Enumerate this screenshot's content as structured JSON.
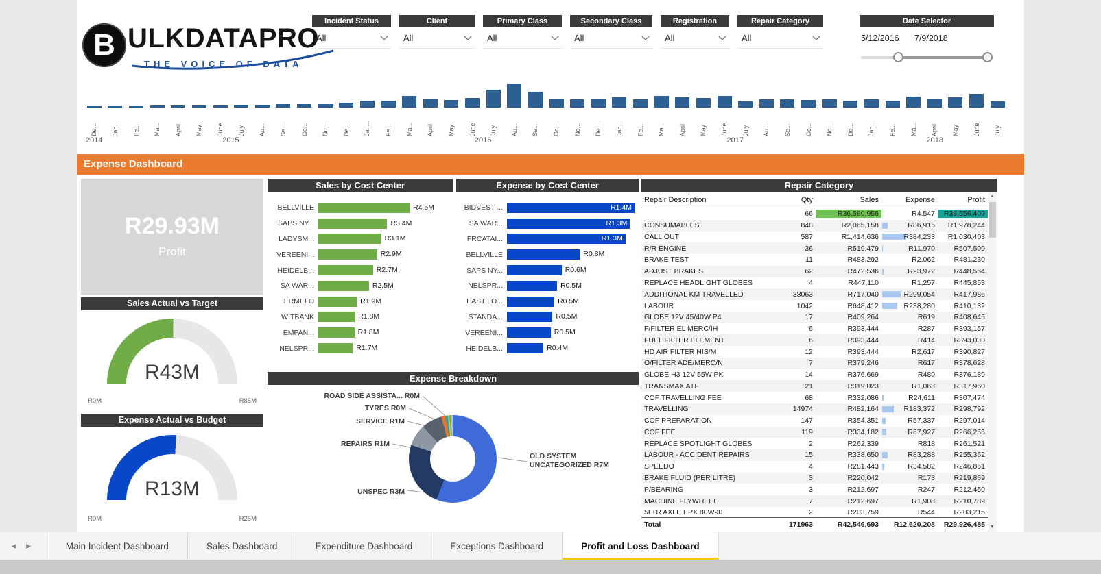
{
  "colors": {
    "header_dark": "#3b3b3b",
    "banner_orange": "#ec7b2e",
    "sales_green": "#70ad47",
    "expense_blue": "#0847c8",
    "timeline_blue": "#2e5f93",
    "sales_highlight": "#70c254",
    "profit_highlight": "#16a398",
    "expense_databar": "#a9c7ef",
    "tab_underline": "#f2c811",
    "logo_blue": "#1d4f9e"
  },
  "logo": {
    "mark": "B",
    "title": "ULKDATAPRO",
    "tagline": "THE VOICE OF DATA"
  },
  "filters": [
    {
      "label": "Incident Status",
      "value": "All"
    },
    {
      "label": "Client",
      "value": "All"
    },
    {
      "label": "Primary Class",
      "value": "All"
    },
    {
      "label": "Secondary Class",
      "value": "All"
    },
    {
      "label": "Registration",
      "value": "All"
    },
    {
      "label": "Repair Category",
      "value": "All"
    }
  ],
  "date_selector": {
    "label": "Date Selector",
    "start_date": "5/12/2016",
    "end_date": "7/9/2018"
  },
  "timeline": {
    "type": "bar",
    "value_scale": "relative-height",
    "months": [
      {
        "label": "De...",
        "value": 2
      },
      {
        "label": "Jan...",
        "value": 2
      },
      {
        "label": "Fe...",
        "value": 2
      },
      {
        "label": "Ma...",
        "value": 3
      },
      {
        "label": "April",
        "value": 3
      },
      {
        "label": "May",
        "value": 3
      },
      {
        "label": "June",
        "value": 3
      },
      {
        "label": "July",
        "value": 4
      },
      {
        "label": "Au...",
        "value": 4
      },
      {
        "label": "Se...",
        "value": 5
      },
      {
        "label": "Oc...",
        "value": 5
      },
      {
        "label": "No...",
        "value": 5
      },
      {
        "label": "De...",
        "value": 7
      },
      {
        "label": "Jan...",
        "value": 10
      },
      {
        "label": "Fe...",
        "value": 10
      },
      {
        "label": "Ma...",
        "value": 17
      },
      {
        "label": "April",
        "value": 13
      },
      {
        "label": "May",
        "value": 11
      },
      {
        "label": "June",
        "value": 14
      },
      {
        "label": "July",
        "value": 26
      },
      {
        "label": "Au...",
        "value": 35
      },
      {
        "label": "Se...",
        "value": 23
      },
      {
        "label": "Oc...",
        "value": 13
      },
      {
        "label": "No...",
        "value": 12
      },
      {
        "label": "De...",
        "value": 13
      },
      {
        "label": "Jan...",
        "value": 15
      },
      {
        "label": "Fe...",
        "value": 12
      },
      {
        "label": "Ma...",
        "value": 17
      },
      {
        "label": "April",
        "value": 15
      },
      {
        "label": "May",
        "value": 14
      },
      {
        "label": "June",
        "value": 17
      },
      {
        "label": "July",
        "value": 9
      },
      {
        "label": "Au...",
        "value": 12
      },
      {
        "label": "Se...",
        "value": 12
      },
      {
        "label": "Oc...",
        "value": 11
      },
      {
        "label": "No...",
        "value": 12
      },
      {
        "label": "De...",
        "value": 10
      },
      {
        "label": "Jan...",
        "value": 12
      },
      {
        "label": "Fe...",
        "value": 10
      },
      {
        "label": "Ma...",
        "value": 16
      },
      {
        "label": "April",
        "value": 13
      },
      {
        "label": "May",
        "value": 15
      },
      {
        "label": "June",
        "value": 20
      },
      {
        "label": "July",
        "value": 9
      }
    ],
    "years": [
      {
        "label": "2014",
        "span": 1
      },
      {
        "label": "2015",
        "span": 12
      },
      {
        "label": "2016",
        "span": 12
      },
      {
        "label": "2017",
        "span": 12
      },
      {
        "label": "2018",
        "span": 7
      }
    ]
  },
  "banner": {
    "title": "Expense Dashboard"
  },
  "profit_card": {
    "value": "R29.93M",
    "label": "Profit"
  },
  "sales_gauge": {
    "type": "gauge",
    "title": "Sales Actual vs Target",
    "value": "R43M",
    "min": "R0M",
    "max": "R85M",
    "fraction": 0.506,
    "color": "#70ad47"
  },
  "expense_gauge": {
    "type": "gauge",
    "title": "Expense Actual vs Budget",
    "value": "R13M",
    "min": "R0M",
    "max": "R25M",
    "fraction": 0.52,
    "color": "#0847c8"
  },
  "sales_by_cost_center": {
    "type": "hbar",
    "title": "Sales by Cost Center",
    "max": 4.5,
    "color": "#70ad47",
    "bars": [
      {
        "label": "BELLVILLE",
        "value": "R4.5M",
        "num": 4.5
      },
      {
        "label": "SAPS NY...",
        "value": "R3.4M",
        "num": 3.4
      },
      {
        "label": "LADYSM...",
        "value": "R3.1M",
        "num": 3.1
      },
      {
        "label": "VEREENI...",
        "value": "R2.9M",
        "num": 2.9
      },
      {
        "label": "HEIDELB...",
        "value": "R2.7M",
        "num": 2.7
      },
      {
        "label": "SA WAR...",
        "value": "R2.5M",
        "num": 2.5
      },
      {
        "label": "ERMELO",
        "value": "R1.9M",
        "num": 1.9
      },
      {
        "label": "WITBANK",
        "value": "R1.8M",
        "num": 1.8
      },
      {
        "label": "EMPAN...",
        "value": "R1.8M",
        "num": 1.78
      },
      {
        "label": "NELSPR...",
        "value": "R1.7M",
        "num": 1.7
      }
    ]
  },
  "expense_by_cost_center": {
    "type": "hbar",
    "title": "Expense by Cost Center",
    "max": 1.4,
    "color": "#0847c8",
    "bars": [
      {
        "label": "BIDVEST ...",
        "value": "R1.4M",
        "num": 1.4,
        "inside": true
      },
      {
        "label": "SA WAR...",
        "value": "R1.3M",
        "num": 1.35,
        "inside": true
      },
      {
        "label": "FRCATAI...",
        "value": "R1.3M",
        "num": 1.3,
        "inside": true
      },
      {
        "label": "BELLVILLE",
        "value": "R0.8M",
        "num": 0.8
      },
      {
        "label": "SAPS NY...",
        "value": "R0.6M",
        "num": 0.6
      },
      {
        "label": "NELSPR...",
        "value": "R0.5M",
        "num": 0.55
      },
      {
        "label": "EAST LO...",
        "value": "R0.5M",
        "num": 0.52
      },
      {
        "label": "STANDA...",
        "value": "R0.5M",
        "num": 0.5
      },
      {
        "label": "VEREENI...",
        "value": "R0.5M",
        "num": 0.48
      },
      {
        "label": "HEIDELB...",
        "value": "R0.4M",
        "num": 0.4
      }
    ]
  },
  "expense_breakdown": {
    "type": "donut",
    "title": "Expense Breakdown",
    "segments": [
      {
        "label": "OLD SYSTEM UNCATEGORIZED",
        "value": "R7M",
        "num": 7.0,
        "color": "#3f6bd8"
      },
      {
        "label": "UNSPEC",
        "value": "R3M",
        "num": 3.0,
        "color": "#253a63"
      },
      {
        "label": "REPAIRS",
        "value": "R1M",
        "num": 1.0,
        "color": "#8e98a3"
      },
      {
        "label": "SERVICE",
        "value": "R1M",
        "num": 0.95,
        "color": "#59626c"
      },
      {
        "label": "TYRES",
        "value": "R0M",
        "num": 0.18,
        "color": "#e8732a"
      },
      {
        "label": "ROAD SIDE ASSISTA...",
        "value": "R0M",
        "num": 0.12,
        "color": "#2aa5ad"
      },
      {
        "label": "",
        "value": "",
        "num": 0.08,
        "color": "#f0b429"
      },
      {
        "label": "",
        "value": "",
        "num": 0.07,
        "color": "#6fae4e"
      },
      {
        "label": "",
        "value": "",
        "num": 0.08,
        "color": "#9dc3e6"
      }
    ]
  },
  "repair_table": {
    "type": "table",
    "title": "Repair Category",
    "columns": [
      "Repair Description",
      "Qty",
      "Sales",
      "Expense",
      "Profit"
    ],
    "rows": [
      [
        "",
        "66",
        "R36,560,956",
        "R4,547",
        "R36,556,409"
      ],
      [
        "CONSUMABLES",
        "848",
        "R2,065,158",
        "R86,915",
        "R1,978,244"
      ],
      [
        "CALL OUT",
        "587",
        "R1,414,636",
        "R384,233",
        "R1,030,403"
      ],
      [
        "R/R ENGINE",
        "36",
        "R519,479",
        "R11,970",
        "R507,509"
      ],
      [
        "BRAKE TEST",
        "11",
        "R483,292",
        "R2,062",
        "R481,230"
      ],
      [
        "ADJUST BRAKES",
        "62",
        "R472,536",
        "R23,972",
        "R448,564"
      ],
      [
        "REPLACE HEADLIGHT GLOBES",
        "4",
        "R447,110",
        "R1,257",
        "R445,853"
      ],
      [
        "ADDITIONAL KM TRAVELLED",
        "38063",
        "R717,040",
        "R299,054",
        "R417,986"
      ],
      [
        "LABOUR",
        "1042",
        "R648,412",
        "R238,280",
        "R410,132"
      ],
      [
        "GLOBE 12V 45/40W P4",
        "17",
        "R409,264",
        "R619",
        "R408,645"
      ],
      [
        "F/FILTER EL MERC/IH",
        "6",
        "R393,444",
        "R287",
        "R393,157"
      ],
      [
        "FUEL FILTER ELEMENT",
        "6",
        "R393,444",
        "R414",
        "R393,030"
      ],
      [
        "HD AIR FILTER NIS/M",
        "12",
        "R393,444",
        "R2,617",
        "R390,827"
      ],
      [
        "O/FILTER ADE/MERC/N",
        "7",
        "R379,246",
        "R617",
        "R378,628"
      ],
      [
        "GLOBE H3 12V 55W PK",
        "14",
        "R376,669",
        "R480",
        "R376,189"
      ],
      [
        "TRANSMAX ATF",
        "21",
        "R319,023",
        "R1,063",
        "R317,960"
      ],
      [
        "COF TRAVELLING FEE",
        "68",
        "R332,086",
        "R24,611",
        "R307,474"
      ],
      [
        "TRAVELLING",
        "14974",
        "R482,164",
        "R183,372",
        "R298,792"
      ],
      [
        "COF PREPARATION",
        "147",
        "R354,351",
        "R57,337",
        "R297,014"
      ],
      [
        "COF FEE",
        "119",
        "R334,182",
        "R67,927",
        "R266,256"
      ],
      [
        "REPLACE SPOTLIGHT GLOBES",
        "2",
        "R262,339",
        "R818",
        "R261,521"
      ],
      [
        "LABOUR - ACCIDENT REPAIRS",
        "15",
        "R338,650",
        "R83,288",
        "R255,362"
      ],
      [
        "SPEEDO",
        "4",
        "R281,443",
        "R34,582",
        "R246,861"
      ],
      [
        "BRAKE FLUID (PER LITRE)",
        "3",
        "R220,042",
        "R173",
        "R219,869"
      ],
      [
        "P/BEARING",
        "3",
        "R212,697",
        "R247",
        "R212,450"
      ],
      [
        "MACHINE FLYWHEEL",
        "7",
        "R212,697",
        "R1,908",
        "R210,789"
      ],
      [
        "5LTR AXLE EPX 80W90",
        "2",
        "R203,759",
        "R544",
        "R203,215"
      ]
    ],
    "highlight_row": 0,
    "total": [
      "Total",
      "171963",
      "R42,546,693",
      "R12,620,208",
      "R29,926,485"
    ]
  },
  "tab_bar": {
    "prev": "◄",
    "next": "►",
    "tabs": [
      {
        "label": "Main Incident Dashboard",
        "active": false
      },
      {
        "label": "Sales Dashboard",
        "active": false
      },
      {
        "label": "Expenditure Dashboard",
        "active": false
      },
      {
        "label": "Exceptions Dashboard",
        "active": false
      },
      {
        "label": "Profit and Loss Dashboard",
        "active": true
      }
    ]
  }
}
